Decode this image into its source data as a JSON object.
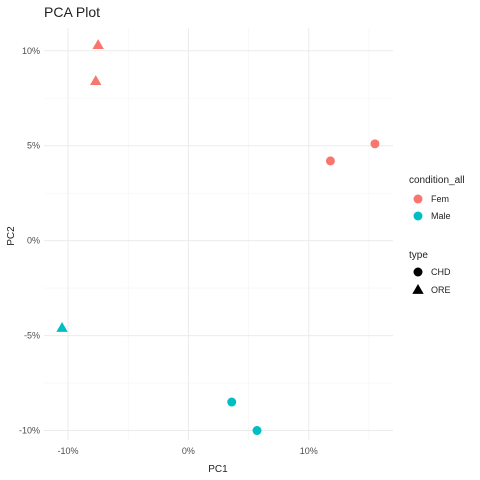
{
  "chart_data": {
    "type": "scatter",
    "title": "PCA Plot",
    "xlabel": "PC1",
    "ylabel": "PC2",
    "xlim": [
      -12,
      17
    ],
    "ylim": [
      -10.5,
      11.2
    ],
    "x_ticks": [
      -10,
      0,
      10
    ],
    "x_tick_labels": [
      "-10%",
      "0%",
      "10%"
    ],
    "y_ticks": [
      -10,
      -5,
      0,
      5,
      10
    ],
    "y_tick_labels": [
      "-10%",
      "-5%",
      "0%",
      "5%",
      "10%"
    ],
    "grid": true,
    "legend_placement": "right",
    "color_legend": {
      "title": "condition_all",
      "entries": [
        {
          "label": "Fem",
          "color": "#F8766D"
        },
        {
          "label": "Male",
          "color": "#00BFC4"
        }
      ]
    },
    "shape_legend": {
      "title": "type",
      "entries": [
        {
          "label": "CHD",
          "shape": "circle"
        },
        {
          "label": "ORE",
          "shape": "triangle"
        }
      ]
    },
    "points": [
      {
        "x": -7.5,
        "y": 10.3,
        "condition": "Fem",
        "type": "ORE"
      },
      {
        "x": -7.7,
        "y": 8.4,
        "condition": "Fem",
        "type": "ORE"
      },
      {
        "x": 11.8,
        "y": 4.2,
        "condition": "Fem",
        "type": "CHD"
      },
      {
        "x": 15.5,
        "y": 5.1,
        "condition": "Fem",
        "type": "CHD"
      },
      {
        "x": -10.5,
        "y": -4.6,
        "condition": "Male",
        "type": "ORE"
      },
      {
        "x": 3.6,
        "y": -8.5,
        "condition": "Male",
        "type": "CHD"
      },
      {
        "x": 5.7,
        "y": -10.0,
        "condition": "Male",
        "type": "CHD"
      }
    ]
  }
}
